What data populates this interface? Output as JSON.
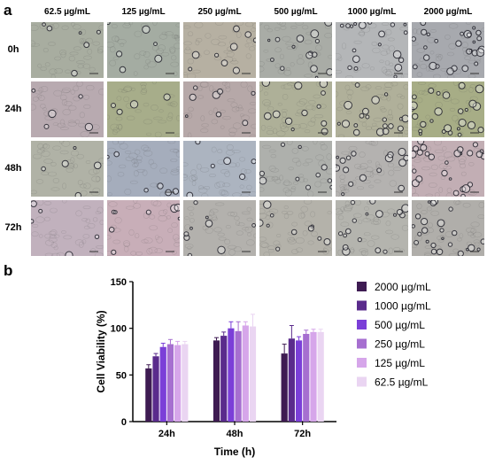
{
  "panels": {
    "a": "a",
    "b": "b"
  },
  "micrograph_grid": {
    "concentrations": [
      "62.5 µg/mL",
      "125 µg/mL",
      "250 µg/mL",
      "500 µg/mL",
      "1000 µg/mL",
      "2000 µg/mL"
    ],
    "timepoints": [
      "0h",
      "24h",
      "48h",
      "72h"
    ],
    "tints": [
      [
        "#a8ada0",
        "#a4aca2",
        "#b6b0a2",
        "#a9aca6",
        "#b4b6b8",
        "#a7a9ae"
      ],
      [
        "#b8aab0",
        "#a7ad8a",
        "#b6a8a8",
        "#aeb098",
        "#b0b09a",
        "#a7ad86"
      ],
      [
        "#b0b2a6",
        "#a5adbc",
        "#acb4c0",
        "#aeb0ac",
        "#b4b2b0",
        "#c2aeb4"
      ],
      [
        "#c1b1bd",
        "#c8aeb8",
        "#b3b1ad",
        "#b4b2aa",
        "#b4b4ae",
        "#b0aeaa"
      ]
    ],
    "bubble_density": [
      [
        0.15,
        0.15,
        0.25,
        0.45,
        0.6,
        0.9
      ],
      [
        0.1,
        0.08,
        0.2,
        0.35,
        0.6,
        0.85
      ],
      [
        0.1,
        0.15,
        0.15,
        0.3,
        0.55,
        0.85
      ],
      [
        0.12,
        0.2,
        0.25,
        0.3,
        0.55,
        0.8
      ]
    ]
  },
  "chart_data": {
    "type": "bar",
    "categories": [
      "24h",
      "48h",
      "72h"
    ],
    "xlabel": "Time (h)",
    "ylabel": "Cell Viability (%)",
    "ylim": [
      0,
      150
    ],
    "yticks": [
      0,
      50,
      100,
      150
    ],
    "legend_position": "right",
    "series": [
      {
        "name": "2000 µg/mL",
        "color": "#3e1b52",
        "values": [
          57,
          87,
          73
        ],
        "errors": [
          4,
          3,
          10
        ]
      },
      {
        "name": "1000 µg/mL",
        "color": "#5a2b8c",
        "values": [
          70,
          92,
          89
        ],
        "errors": [
          3,
          4,
          14
        ]
      },
      {
        "name": "500 µg/mL",
        "color": "#7b3fd8",
        "values": [
          80,
          100,
          87
        ],
        "errors": [
          4,
          7,
          4
        ]
      },
      {
        "name": "250 µg/mL",
        "color": "#a66fd0",
        "values": [
          83,
          97,
          94
        ],
        "errors": [
          5,
          10,
          4
        ]
      },
      {
        "name": "125 µg/mL",
        "color": "#d6a6ea",
        "values": [
          82,
          103,
          96
        ],
        "errors": [
          4,
          4,
          3
        ]
      },
      {
        "name": "62.5 µg/mL",
        "color": "#ead5f2",
        "values": [
          83,
          102,
          96
        ],
        "errors": [
          3,
          13,
          3
        ]
      }
    ]
  }
}
